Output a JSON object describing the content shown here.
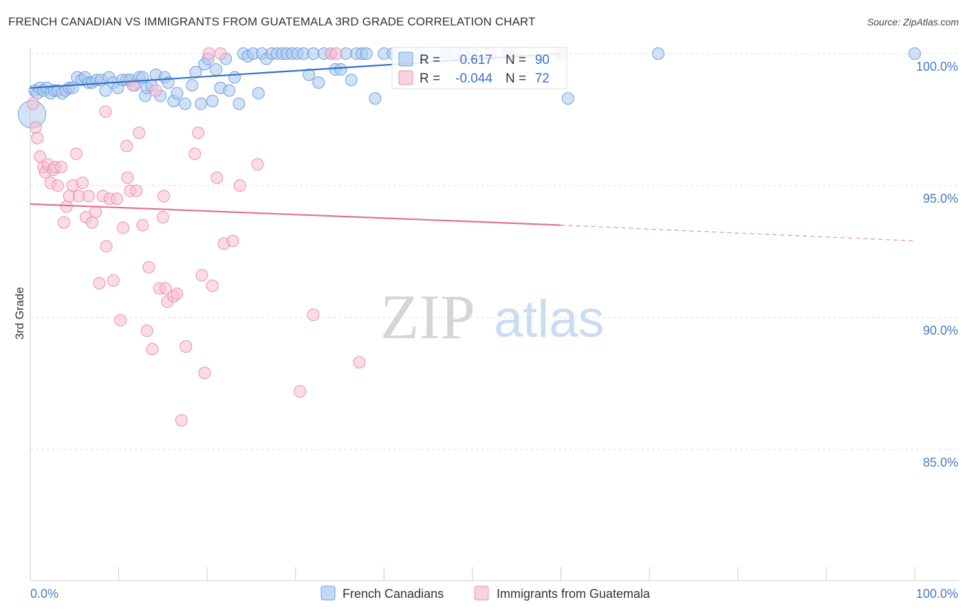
{
  "title": "FRENCH CANADIAN VS IMMIGRANTS FROM GUATEMALA 3RD GRADE CORRELATION CHART",
  "source": "Source: ZipAtlas.com",
  "watermark": {
    "zip": "ZIP",
    "atlas": "atlas"
  },
  "colors": {
    "blue_fill": "#a9c8ee",
    "blue_stroke": "#6f9fdc",
    "blue_line": "#2f6fce",
    "pink_fill": "#f6bfd1",
    "pink_stroke": "#ea8fb0",
    "pink_line": "#e0709a",
    "grid": "#dddddd",
    "axis_text": "#4a7ac7"
  },
  "legend": {
    "r_label": "R =",
    "n_label": "N =",
    "series1": {
      "r": "0.617",
      "n": "90"
    },
    "series2": {
      "r": "-0.044",
      "n": "72"
    }
  },
  "chart_data": {
    "type": "scatter",
    "title": "FRENCH CANADIAN VS IMMIGRANTS FROM GUATEMALA 3RD GRADE CORRELATION CHART",
    "xlabel": "",
    "ylabel": "3rd Grade",
    "x_tick_labels": [
      "0.0%",
      "100.0%"
    ],
    "y_tick_labels": [
      "100.0%",
      "95.0%",
      "90.0%",
      "85.0%"
    ],
    "y_ticks": [
      100,
      95,
      90,
      85
    ],
    "xlim": [
      0,
      100
    ],
    "ylim": [
      80,
      100.8
    ],
    "grid": true,
    "legend_position": "top",
    "series": [
      {
        "name": "French Canadians",
        "r": 0.617,
        "n": 90,
        "trend": {
          "x0": 0,
          "y0": 98.7,
          "x1": 60,
          "y1": 100.0,
          "dashed_to_x": 61
        },
        "points": [
          [
            0.5,
            98.6
          ],
          [
            0.8,
            98.5
          ],
          [
            1.1,
            98.7
          ],
          [
            1.5,
            98.6
          ],
          [
            1.9,
            98.7
          ],
          [
            2.3,
            98.5
          ],
          [
            2.7,
            98.6
          ],
          [
            3.1,
            98.6
          ],
          [
            3.6,
            98.5
          ],
          [
            4.0,
            98.6
          ],
          [
            4.4,
            98.7
          ],
          [
            4.8,
            98.7
          ],
          [
            5.3,
            99.1
          ],
          [
            5.8,
            99.0
          ],
          [
            6.2,
            99.1
          ],
          [
            6.6,
            98.9
          ],
          [
            7.0,
            98.9
          ],
          [
            7.5,
            99.0
          ],
          [
            8.0,
            99.0
          ],
          [
            8.5,
            98.6
          ],
          [
            8.9,
            99.1
          ],
          [
            9.4,
            98.9
          ],
          [
            9.9,
            98.7
          ],
          [
            10.4,
            99.0
          ],
          [
            10.9,
            99.0
          ],
          [
            11.3,
            99.0
          ],
          [
            11.8,
            98.8
          ],
          [
            12.3,
            99.1
          ],
          [
            12.7,
            99.1
          ],
          [
            13.0,
            98.4
          ],
          [
            13.2,
            98.7
          ],
          [
            13.7,
            98.8
          ],
          [
            14.2,
            99.2
          ],
          [
            14.7,
            98.4
          ],
          [
            15.2,
            99.1
          ],
          [
            15.6,
            98.9
          ],
          [
            16.2,
            98.2
          ],
          [
            16.6,
            98.5
          ],
          [
            17.5,
            98.1
          ],
          [
            18.3,
            98.8
          ],
          [
            18.7,
            99.3
          ],
          [
            19.3,
            98.1
          ],
          [
            19.7,
            99.6
          ],
          [
            20.1,
            99.8
          ],
          [
            20.6,
            98.2
          ],
          [
            21.0,
            99.4
          ],
          [
            21.5,
            98.7
          ],
          [
            22.1,
            99.8
          ],
          [
            22.5,
            98.6
          ],
          [
            23.1,
            99.1
          ],
          [
            23.6,
            98.1
          ],
          [
            24.1,
            100.0
          ],
          [
            24.6,
            99.9
          ],
          [
            25.2,
            100.0
          ],
          [
            25.8,
            98.5
          ],
          [
            26.2,
            100.0
          ],
          [
            26.7,
            99.8
          ],
          [
            27.3,
            100.0
          ],
          [
            27.9,
            100.0
          ],
          [
            28.5,
            100.0
          ],
          [
            29.0,
            100.0
          ],
          [
            29.6,
            100.0
          ],
          [
            30.2,
            100.0
          ],
          [
            30.9,
            100.0
          ],
          [
            31.5,
            99.2
          ],
          [
            32.0,
            100.0
          ],
          [
            32.6,
            98.9
          ],
          [
            33.2,
            100.0
          ],
          [
            34.0,
            100.0
          ],
          [
            34.5,
            99.4
          ],
          [
            35.1,
            99.4
          ],
          [
            35.7,
            100.0
          ],
          [
            36.3,
            99.0
          ],
          [
            36.9,
            100.0
          ],
          [
            37.5,
            100.0
          ],
          [
            38.0,
            100.0
          ],
          [
            39.0,
            98.3
          ],
          [
            40.0,
            100.0
          ],
          [
            41.0,
            100.0
          ],
          [
            44.0,
            100.0
          ],
          [
            47.0,
            100.0
          ],
          [
            48.0,
            100.0
          ],
          [
            49.0,
            100.0
          ],
          [
            50.0,
            100.0
          ],
          [
            52.0,
            100.0
          ],
          [
            54.0,
            100.0
          ],
          [
            60.0,
            100.0
          ],
          [
            60.8,
            98.3
          ],
          [
            71.0,
            100.0
          ],
          [
            100.0,
            100.0
          ]
        ]
      },
      {
        "name": "Immigrants from Guatemala",
        "r": -0.044,
        "n": 72,
        "trend": {
          "x0": 0,
          "y0": 94.3,
          "x1": 60,
          "y1": 93.5,
          "dashed_to_x": 100,
          "dashed_to_y": 92.9
        },
        "points": [
          [
            0.3,
            98.1
          ],
          [
            0.6,
            97.2
          ],
          [
            0.8,
            96.8
          ],
          [
            1.1,
            96.1
          ],
          [
            1.5,
            95.7
          ],
          [
            1.7,
            95.5
          ],
          [
            2.0,
            95.8
          ],
          [
            2.3,
            95.1
          ],
          [
            2.6,
            95.6
          ],
          [
            2.8,
            95.7
          ],
          [
            3.1,
            95.0
          ],
          [
            3.5,
            95.7
          ],
          [
            3.8,
            93.6
          ],
          [
            4.1,
            94.2
          ],
          [
            4.4,
            94.6
          ],
          [
            4.8,
            95.0
          ],
          [
            5.2,
            96.2
          ],
          [
            5.5,
            94.6
          ],
          [
            5.9,
            95.1
          ],
          [
            6.3,
            93.8
          ],
          [
            6.6,
            94.6
          ],
          [
            7.0,
            93.6
          ],
          [
            7.4,
            94.0
          ],
          [
            7.8,
            91.3
          ],
          [
            8.2,
            94.6
          ],
          [
            8.5,
            97.8
          ],
          [
            8.6,
            92.7
          ],
          [
            9.0,
            94.5
          ],
          [
            9.4,
            91.4
          ],
          [
            9.8,
            94.5
          ],
          [
            10.2,
            89.9
          ],
          [
            10.5,
            93.4
          ],
          [
            10.9,
            96.5
          ],
          [
            11.0,
            95.3
          ],
          [
            11.3,
            94.8
          ],
          [
            11.6,
            98.8
          ],
          [
            12.0,
            94.8
          ],
          [
            12.3,
            97.0
          ],
          [
            12.7,
            93.5
          ],
          [
            13.2,
            89.5
          ],
          [
            13.4,
            91.9
          ],
          [
            13.8,
            88.8
          ],
          [
            14.2,
            98.6
          ],
          [
            14.6,
            91.1
          ],
          [
            15.0,
            93.8
          ],
          [
            15.1,
            94.6
          ],
          [
            15.3,
            91.1
          ],
          [
            15.5,
            90.6
          ],
          [
            16.2,
            90.8
          ],
          [
            16.6,
            90.9
          ],
          [
            17.1,
            86.1
          ],
          [
            17.6,
            88.9
          ],
          [
            18.6,
            96.2
          ],
          [
            19.0,
            97.0
          ],
          [
            19.4,
            91.6
          ],
          [
            19.7,
            87.9
          ],
          [
            20.2,
            100.0
          ],
          [
            20.6,
            91.2
          ],
          [
            21.1,
            95.3
          ],
          [
            21.5,
            100.0
          ],
          [
            21.9,
            92.8
          ],
          [
            22.9,
            92.9
          ],
          [
            23.7,
            95.0
          ],
          [
            25.7,
            95.8
          ],
          [
            30.5,
            87.2
          ],
          [
            32.0,
            90.1
          ],
          [
            34.0,
            100.0
          ],
          [
            34.6,
            100.0
          ],
          [
            37.2,
            88.3
          ],
          [
            52.0,
            100.0
          ],
          [
            55.0,
            100.0
          ],
          [
            60.0,
            100.0
          ]
        ]
      }
    ]
  },
  "bottom_legend": [
    {
      "label": "French Canadians"
    },
    {
      "label": "Immigrants from Guatemala"
    }
  ]
}
